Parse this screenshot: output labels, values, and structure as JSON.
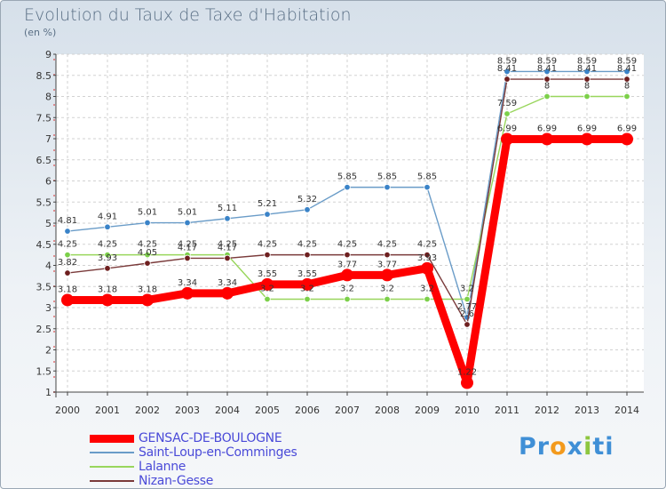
{
  "header": {
    "title": "Evolution du Taux de Taxe d'Habitation",
    "subtitle": "(en %)"
  },
  "logo": {
    "parts": [
      "Pr",
      "o",
      "x",
      "i",
      "ti"
    ],
    "colors": [
      "#3f8fd6",
      "#f39a1d",
      "#3f8fd6",
      "#8dc63f",
      "#3f8fd6"
    ]
  },
  "chart_data": {
    "type": "line",
    "title": "Evolution du Taux de Taxe d'Habitation",
    "ylabel": "(en %)",
    "categories": [
      2000,
      2001,
      2002,
      2003,
      2004,
      2005,
      2006,
      2007,
      2008,
      2009,
      2010,
      2011,
      2012,
      2013,
      2014
    ],
    "ylim": [
      1,
      9
    ],
    "yticks": [
      "1",
      "1.5",
      "2",
      "2.5",
      "3",
      "3.5",
      "4",
      "4.5",
      "5",
      "5.5",
      "6",
      "6.5",
      "7",
      "7.5",
      "8",
      "8.5",
      "9"
    ],
    "legend_position": "bottom-left",
    "series": [
      {
        "name": "Saint-Loup-en-Comminges",
        "color": "#6a9cc8",
        "marker": "#3a83c8",
        "values": [
          4.81,
          4.91,
          5.01,
          5.01,
          5.11,
          5.21,
          5.32,
          5.85,
          5.85,
          5.85,
          2.77,
          8.59,
          8.59,
          8.59,
          8.59
        ],
        "labels": [
          "4.81",
          "4.91",
          "5.01",
          "5.01",
          "5.11",
          "5.21",
          "5.32",
          "5.85",
          "5.85",
          "5.85",
          "2.77",
          "8.59",
          "8.59",
          "8.59",
          "8.59"
        ]
      },
      {
        "name": "Lalanne",
        "color": "#99d65c",
        "marker": "#7cd04a",
        "values": [
          4.25,
          4.25,
          4.25,
          4.25,
          4.25,
          3.2,
          3.2,
          3.2,
          3.2,
          3.2,
          3.2,
          7.59,
          8,
          8,
          8
        ],
        "labels": [
          "4.25",
          "4.25",
          "4.25",
          "4.25",
          "4.25",
          "3.2",
          "3.2",
          "3.2",
          "3.2",
          "3.2",
          "3.2",
          "7.59",
          "8",
          "8",
          "8"
        ]
      },
      {
        "name": "Nizan-Gesse",
        "color": "#7a3a3a",
        "marker": "#6e1f1f",
        "values": [
          3.82,
          3.93,
          4.05,
          4.17,
          4.17,
          4.25,
          4.25,
          4.25,
          4.25,
          4.25,
          2.6,
          8.41,
          8.41,
          8.41,
          8.41
        ],
        "labels": [
          "3.82",
          "3.93",
          "4.05",
          "4.17",
          "4.17",
          "4.25",
          "4.25",
          "4.25",
          "4.25",
          "4.25",
          "2.6",
          "8.41",
          "8.41",
          "8.41",
          "8.41"
        ]
      },
      {
        "name": "GENSAC-DE-BOULOGNE",
        "color": "#ff0000",
        "marker": "#ff0000",
        "values": [
          3.18,
          3.18,
          3.18,
          3.34,
          3.34,
          3.55,
          3.55,
          3.77,
          3.77,
          3.93,
          1.22,
          6.99,
          6.99,
          6.99,
          6.99
        ],
        "labels": [
          "3.18",
          "3.18",
          "3.18",
          "3.34",
          "3.34",
          "3.55",
          "3.55",
          "3.77",
          "3.77",
          "3.93",
          "1.22",
          "6.99",
          "6.99",
          "6.99",
          "6.99"
        ]
      }
    ]
  },
  "legend": {
    "items": [
      {
        "name": "GENSAC-DE-BOULOGNE",
        "color": "#ff0000",
        "weight": "thick"
      },
      {
        "name": "Saint-Loup-en-Comminges",
        "color": "#6a9cc8",
        "weight": "thin"
      },
      {
        "name": "Lalanne",
        "color": "#99d65c",
        "weight": "thin"
      },
      {
        "name": "Nizan-Gesse",
        "color": "#7a3a3a",
        "weight": "thin"
      }
    ]
  }
}
